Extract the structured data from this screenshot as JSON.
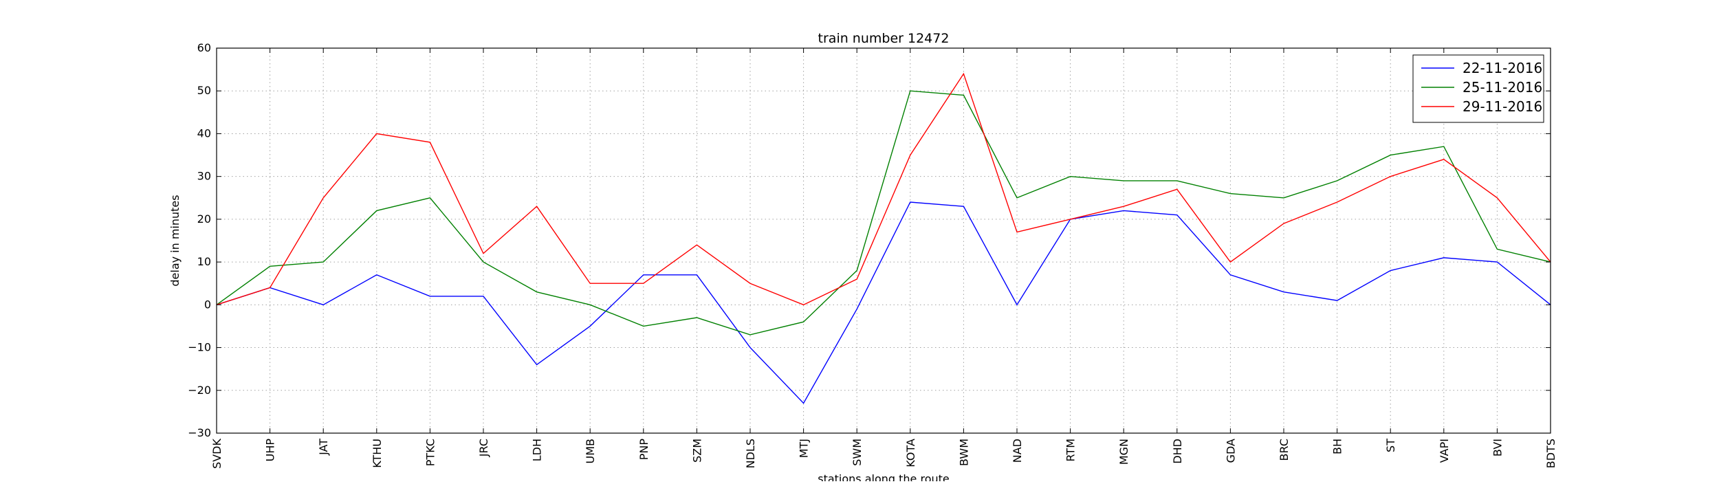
{
  "chart_data": {
    "type": "line",
    "title": "train number 12472",
    "xlabel": "stations along the route",
    "ylabel": "delay in minutes",
    "categories": [
      "SVDK",
      "UHP",
      "JAT",
      "KTHU",
      "PTKC",
      "JRC",
      "LDH",
      "UMB",
      "PNP",
      "SZM",
      "NDLS",
      "MTJ",
      "SWM",
      "KOTA",
      "BWM",
      "NAD",
      "RTM",
      "MGN",
      "DHD",
      "GDA",
      "BRC",
      "BH",
      "ST",
      "VAPI",
      "BVI",
      "BDTS"
    ],
    "ylim": [
      -30,
      60
    ],
    "yticks": [
      -30,
      -20,
      -10,
      0,
      10,
      20,
      30,
      40,
      50,
      60
    ],
    "grid": true,
    "legend_position": "top-right",
    "series": [
      {
        "name": "22-11-2016",
        "color": "#0000ff",
        "values": [
          0,
          4,
          0,
          7,
          2,
          2,
          -14,
          -5,
          7,
          7,
          -10,
          -23,
          -1,
          24,
          23,
          0,
          20,
          22,
          21,
          7,
          3,
          1,
          8,
          11,
          10,
          0
        ]
      },
      {
        "name": "25-11-2016",
        "color": "#008000",
        "values": [
          0,
          9,
          10,
          22,
          25,
          10,
          3,
          0,
          -5,
          -3,
          -7,
          -4,
          8,
          50,
          49,
          25,
          30,
          29,
          29,
          26,
          25,
          29,
          35,
          37,
          13,
          10
        ]
      },
      {
        "name": "29-11-2016",
        "color": "#ff0000",
        "values": [
          0,
          4,
          25,
          40,
          38,
          12,
          23,
          5,
          5,
          14,
          5,
          0,
          6,
          35,
          54,
          17,
          20,
          23,
          27,
          10,
          19,
          24,
          30,
          34,
          25,
          10
        ]
      }
    ]
  }
}
